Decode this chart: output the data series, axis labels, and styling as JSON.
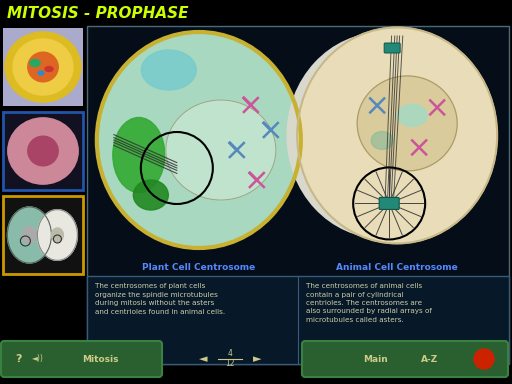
{
  "title": "Mitosis - Prophase",
  "background_color": "#000000",
  "title_color": "#ccff00",
  "title_fontsize": 11,
  "main_panel_bg": "#050e18",
  "main_panel_border": "#4a6a7a",
  "plant_label": "Plant Cell Centrosome",
  "animal_label": "Animal Cell Centrosome",
  "label_color": "#5588ff",
  "label_fontsize": 6.5,
  "plant_text": "The centrosomes of plant cells\norganize the spindle microtubules\nduring mitosis without the asters\nand centrioles found in animal cells.",
  "animal_text": "The centrosomes of animal cells\ncontain a pair of cylindrical\ncentrioles. The centrosomes are\nalso surrounded by radial arrays of\nmicrotubules called asters.",
  "body_text_color": "#ccccaa",
  "body_text_fontsize": 5.2,
  "text_panel_bg": "#071828",
  "text_panel_border": "#3a5a7a",
  "nav_bar_color": "#2a6030",
  "nav_bar_border": "#3a8040",
  "nav_text_color": "#cccc88",
  "nav_fontsize": 6.5,
  "thumb_border_colors": [
    "#000000",
    "#2255aa",
    "#cc9900"
  ],
  "plant_cell_fill": "#a8d8c0",
  "plant_cell_border": "#c8b030",
  "plant_nuc_fill": "#d8eedd",
  "plant_green1": "#33aa33",
  "plant_green2": "#228822",
  "plant_teal_top": "#88cccc",
  "animal_cell_fill": "#e8ddb8",
  "animal_cell_border": "#c8b888",
  "animal_nuc_fill": "#d8c898",
  "animal_gray_left": "#d8d8cc",
  "circle_color": "#000000",
  "circle_lw": 1.5,
  "chrom_pink": "#cc5599",
  "chrom_blue": "#5588bb",
  "chrom_teal": "#228877",
  "spindle_color": "#333333",
  "aster_color": "#444444"
}
